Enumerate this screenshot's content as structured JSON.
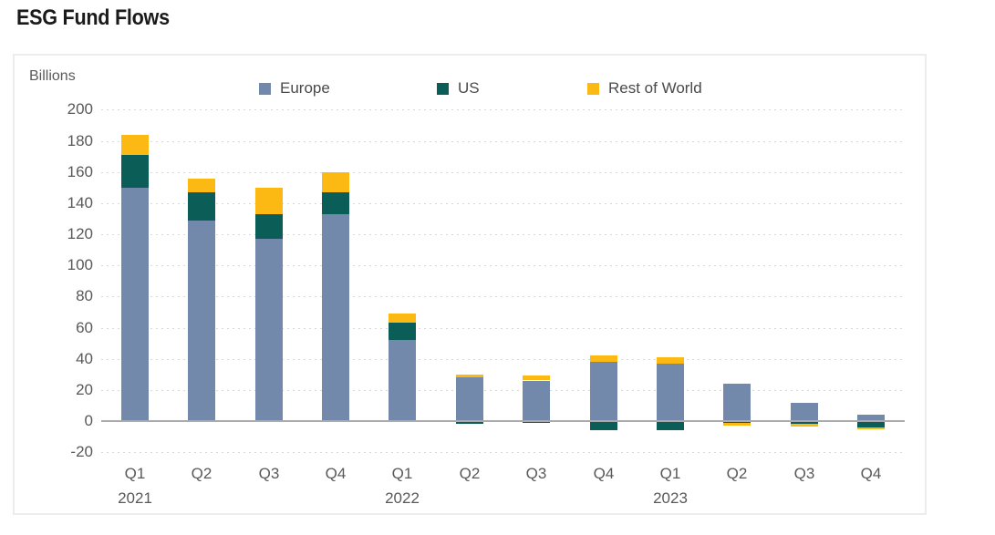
{
  "page": {
    "title": "ESG Fund Flows"
  },
  "chart_data": {
    "type": "bar",
    "stacked": true,
    "title": "ESG Fund Flows",
    "ylabel": "Billions",
    "xlabel": "",
    "unit": "Billions",
    "categories": [
      "Q1",
      "Q2",
      "Q3",
      "Q4",
      "Q1",
      "Q2",
      "Q3",
      "Q4",
      "Q1",
      "Q2",
      "Q3",
      "Q4"
    ],
    "year_labels": [
      {
        "index": 0,
        "label": "2021"
      },
      {
        "index": 4,
        "label": "2022"
      },
      {
        "index": 8,
        "label": "2023"
      }
    ],
    "series": [
      {
        "name": "Europe",
        "color": "#7289AC",
        "values": [
          150,
          129,
          117,
          133,
          52,
          28,
          26,
          38,
          37,
          24,
          12,
          4
        ]
      },
      {
        "name": "US",
        "color": "#0B5E58",
        "values": [
          21,
          18,
          16,
          14,
          11,
          -2,
          -1,
          -6,
          -6,
          -1,
          -2,
          -4
        ]
      },
      {
        "name": "Rest of World",
        "color": "#FCB813",
        "values": [
          13,
          9,
          17,
          13,
          6,
          2,
          3,
          4,
          4,
          -2,
          -2,
          -1
        ]
      }
    ],
    "ylim": [
      -20,
      200
    ],
    "yticks": [
      200,
      180,
      160,
      140,
      120,
      100,
      80,
      60,
      40,
      20,
      0,
      -20
    ],
    "grid": "horizontal-dotted",
    "legend_position": "top",
    "colors": {
      "title_text": "#1a1a1a",
      "axis_text": "#595959",
      "zero_line": "#ababab",
      "gridline": "#d9d9d9",
      "panel_border": "#ececec",
      "background": "#ffffff"
    }
  }
}
